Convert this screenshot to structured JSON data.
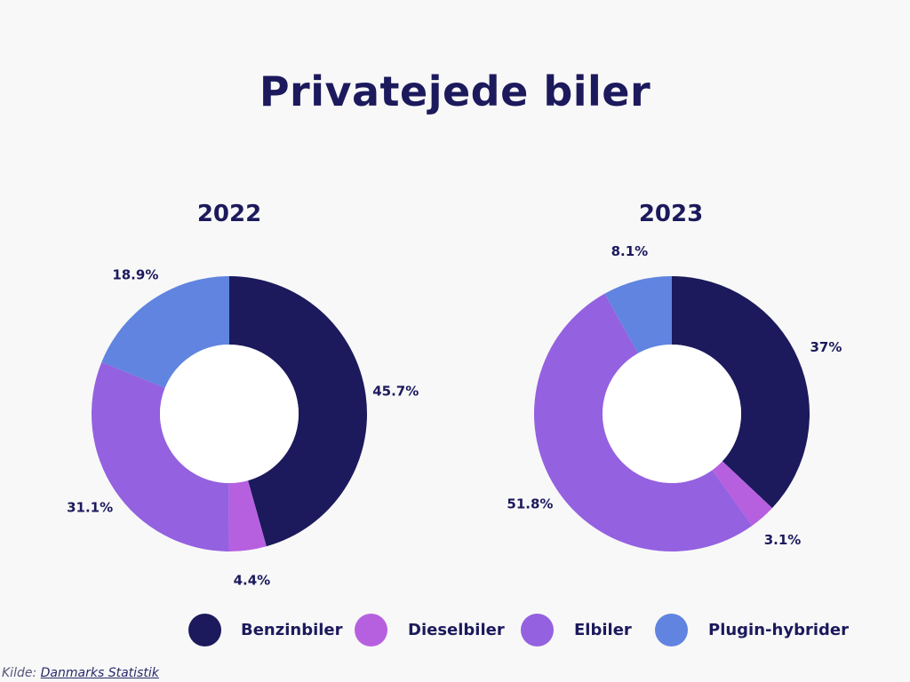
{
  "title": "Privatejede biler",
  "colors": {
    "Benzinbiler": "#1c1a5c",
    "Dieselbiler": "#b660e0",
    "Elbiler": "#9461e0",
    "Plugin-hybrider": "#6084e0"
  },
  "chart_data": [
    {
      "type": "pie",
      "donut": true,
      "title": "2022",
      "labels": [
        "Benzinbiler",
        "Dieselbiler",
        "Elbiler",
        "Plugin-hybrider"
      ],
      "values": [
        45.7,
        4.4,
        31.1,
        18.9
      ],
      "value_labels": [
        "45.7%",
        "4.4%",
        "31.1%",
        "18.9%"
      ]
    },
    {
      "type": "pie",
      "donut": true,
      "title": "2023",
      "labels": [
        "Benzinbiler",
        "Dieselbiler",
        "Elbiler",
        "Plugin-hybrider"
      ],
      "values": [
        37,
        3.1,
        51.8,
        8.1
      ],
      "value_labels": [
        "37%",
        "3.1%",
        "51.8%",
        "8.1%"
      ]
    }
  ],
  "legend": {
    "position": "bottom",
    "items": [
      "Benzinbiler",
      "Dieselbiler",
      "Elbiler",
      "Plugin-hybrider"
    ]
  },
  "source": {
    "prefix": "Kilde: ",
    "link_text": "Danmarks Statistik"
  }
}
